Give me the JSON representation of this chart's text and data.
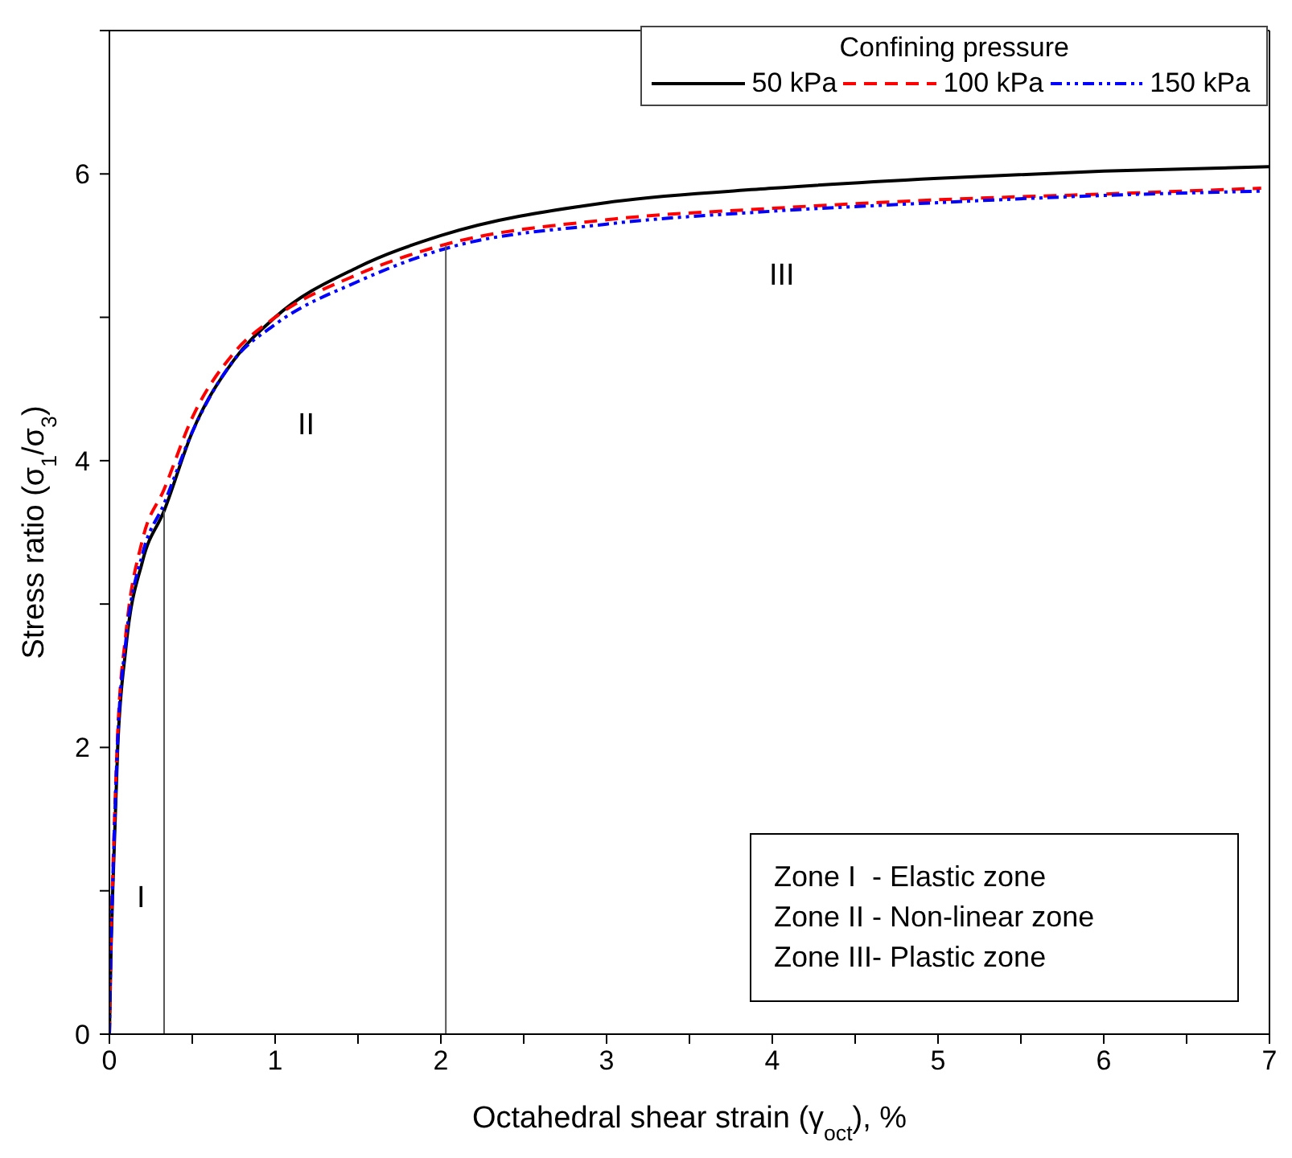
{
  "chart_data": {
    "type": "line",
    "xlabel": "Octahedral shear strain (γ$_{oct}$), %",
    "ylabel": "Stress ratio (σ$_{1}$/σ$_{3}$)",
    "legend_title": "Confining pressure",
    "legend": "top right",
    "grid": false,
    "marker": "none",
    "xlim": [
      0,
      7
    ],
    "xticks": [
      0,
      {
        "value": 0.5,
        "label": null
      },
      1,
      {
        "value": 1.5,
        "label": null
      },
      2,
      {
        "value": 2.5,
        "label": null
      },
      3,
      {
        "value": 3.5,
        "label": null
      },
      4,
      {
        "value": 4.5,
        "label": null
      },
      5,
      {
        "value": 5.5,
        "label": null
      },
      6,
      {
        "value": 6.5,
        "label": null
      },
      7
    ],
    "ylim": [
      0,
      7
    ],
    "yticks": [
      0,
      {
        "value": 1,
        "label": null
      },
      2,
      {
        "value": 3,
        "label": null
      },
      4,
      {
        "value": 5,
        "label": null
      },
      6,
      {
        "value": 7,
        "label": null
      }
    ],
    "series": [
      {
        "name": "50 kPa",
        "color": "#000000",
        "line_style": "solid",
        "x": [
          0,
          0.01,
          0.02,
          0.05,
          0.1,
          0.2,
          0.33,
          0.5,
          0.75,
          1,
          1.5,
          2,
          3,
          4,
          5,
          6,
          7
        ],
        "values": [
          0,
          0.6,
          1,
          2,
          2.7,
          3.3,
          3.65,
          4.2,
          4.7,
          5,
          5.35,
          5.57,
          5.8,
          5.9,
          5.97,
          6.02,
          6.05
        ]
      },
      {
        "name": "100 kPa",
        "color": "#ff0000",
        "line_style": "dashed",
        "x": [
          0,
          0.01,
          0.02,
          0.05,
          0.1,
          0.2,
          0.33,
          0.5,
          0.75,
          1,
          1.5,
          2,
          3,
          4,
          5,
          6,
          6.95
        ],
        "values": [
          0,
          0.7,
          1.1,
          2.1,
          2.8,
          3.45,
          3.8,
          4.3,
          4.75,
          5,
          5.3,
          5.5,
          5.68,
          5.76,
          5.82,
          5.86,
          5.9
        ]
      },
      {
        "name": "150 kPa",
        "color": "#0000ff",
        "line_style": "dotted",
        "x": [
          0,
          0.01,
          0.02,
          0.05,
          0.1,
          0.2,
          0.33,
          0.5,
          0.75,
          1,
          1.5,
          2,
          3,
          4,
          5,
          6,
          6.95
        ],
        "values": [
          0,
          0.65,
          1.05,
          2.05,
          2.75,
          3.35,
          3.7,
          4.2,
          4.7,
          4.95,
          5.25,
          5.47,
          5.65,
          5.74,
          5.8,
          5.85,
          5.88
        ]
      },
      {
        "color": "#555555",
        "line_style": "solid",
        "x": [
          0.33,
          0.33
        ],
        "values": [
          0,
          3.65
        ]
      },
      {
        "color": "#555555",
        "line_style": "solid",
        "x": [
          2.03,
          2.03
        ],
        "values": [
          0,
          5.5
        ]
      }
    ],
    "annotations": [
      "I",
      "II",
      "III",
      "Zone I  - Elastic zone",
      "Zone II - Non-linear zone",
      "Zone III- Plastic zone"
    ]
  }
}
